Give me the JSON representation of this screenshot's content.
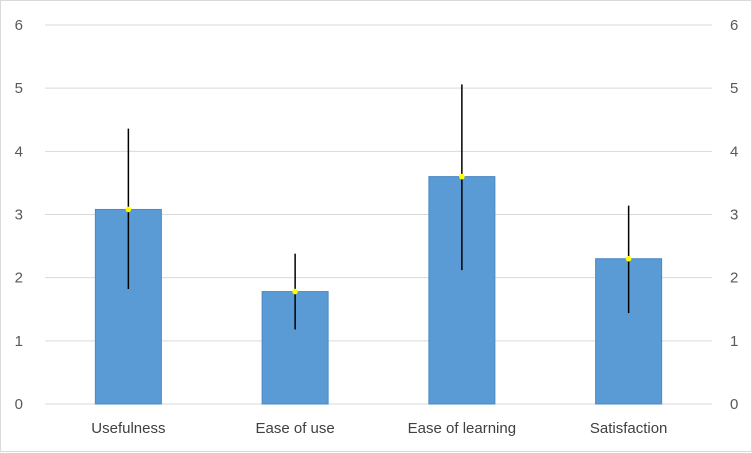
{
  "chart_data": {
    "type": "bar",
    "title": "",
    "xlabel": "",
    "ylabel": "",
    "categories": [
      "Usefulness",
      "Ease of use",
      "Ease of learning",
      "Satisfaction"
    ],
    "values": [
      3.08,
      1.78,
      3.6,
      2.3
    ],
    "error_low": [
      1.82,
      1.18,
      2.12,
      1.44
    ],
    "error_high": [
      4.36,
      2.38,
      5.06,
      3.14
    ],
    "ylim": [
      0,
      6
    ],
    "yticks": [
      "0",
      "1",
      "2",
      "3",
      "4",
      "5",
      "6"
    ],
    "secondary_axis": true,
    "grid": true,
    "legend": "none",
    "colors": {
      "bar": "#5b9bd5",
      "bar_edge": "#4a89c4",
      "error_bar": "#000000",
      "mean_marker": "#ffff00",
      "grid": "#d9d9d9"
    }
  }
}
